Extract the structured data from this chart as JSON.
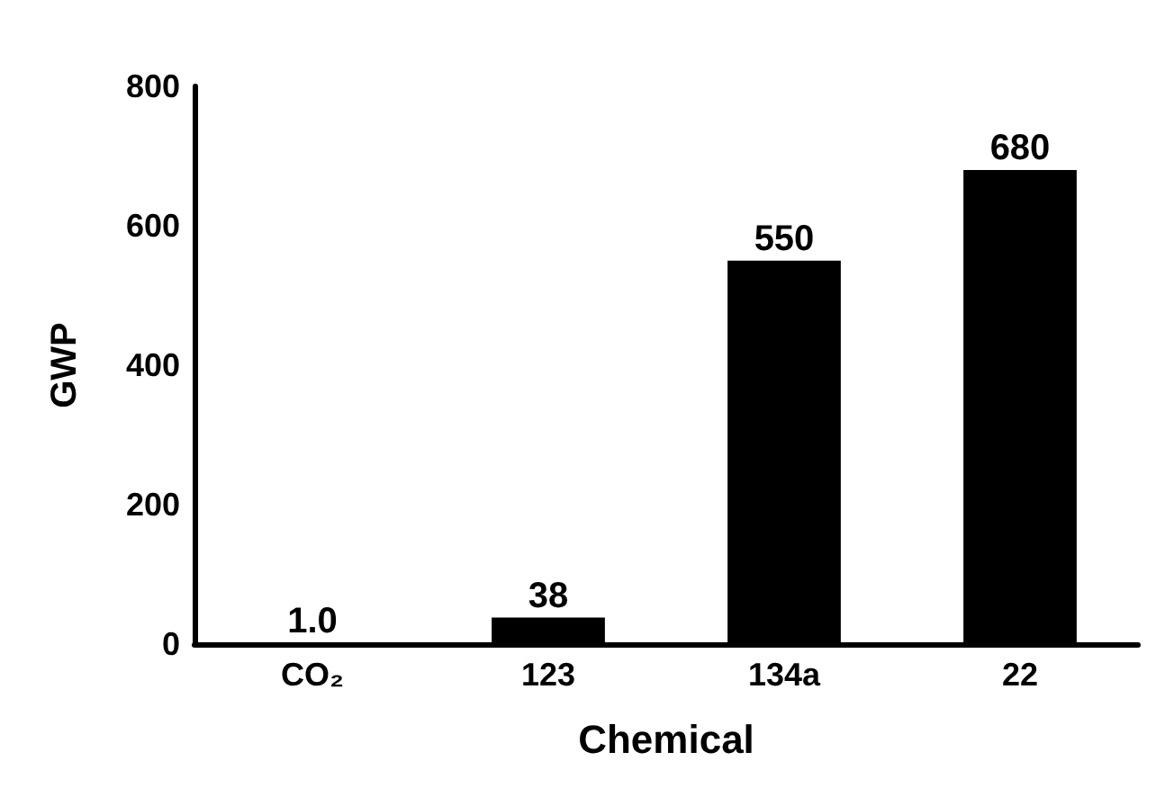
{
  "chart_data": {
    "type": "bar",
    "xlabel": "Chemical",
    "ylabel": "GWP",
    "categories": [
      "CO₂",
      "123",
      "134a",
      "22"
    ],
    "values": [
      1,
      38,
      550,
      680
    ],
    "value_labels": [
      "1.0",
      "38",
      "550",
      "680"
    ],
    "color": "#000000",
    "ylim": [
      0,
      800
    ],
    "yticks": [
      0,
      200,
      400,
      600,
      800
    ],
    "grid": false
  }
}
